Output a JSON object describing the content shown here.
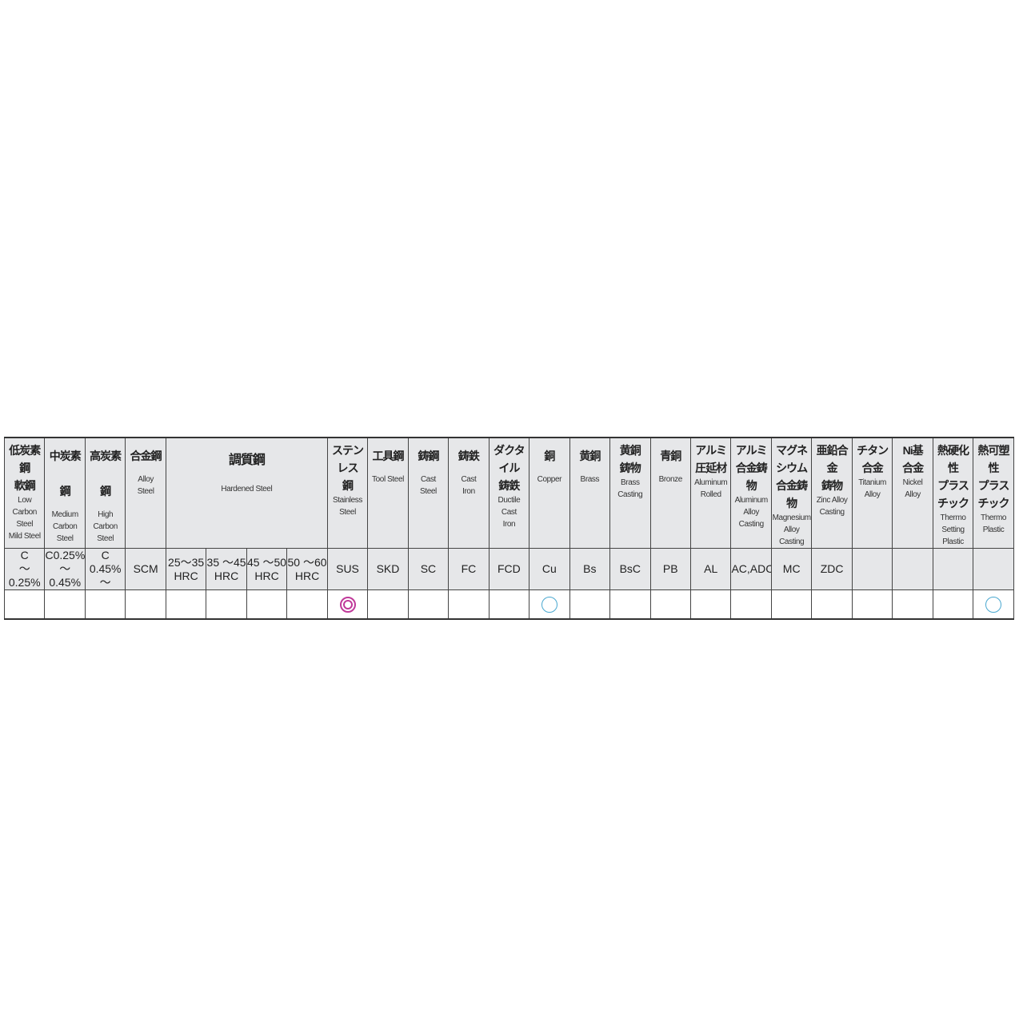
{
  "headers": [
    {
      "jp": "低炭素鋼\n軟鋼",
      "en": "Low Carbon\nSteel\nMild Steel"
    },
    {
      "jp": "中炭素鋼",
      "en": "Medium\nCarbon\nSteel"
    },
    {
      "jp": "高炭素鋼",
      "en": "High\nCarbon\nSteel"
    },
    {
      "jp": "合金鋼",
      "en": "Alloy\nSteel"
    },
    {
      "jp": "調質鋼",
      "en": "Hardened Steel",
      "span": 4
    },
    {
      "jp": "ステンレス\n鋼",
      "en": "Stainless\nSteel"
    },
    {
      "jp": "工具鋼",
      "en": "Tool Steel"
    },
    {
      "jp": "鋳鋼",
      "en": "Cast\nSteel"
    },
    {
      "jp": "鋳鉄",
      "en": "Cast\nIron"
    },
    {
      "jp": "ダクタイル\n鋳鉄",
      "en": "Ductile\nCast\nIron"
    },
    {
      "jp": "銅",
      "en": "Copper"
    },
    {
      "jp": "黄銅",
      "en": "Brass"
    },
    {
      "jp": "黄銅\n鋳物",
      "en": "Brass\nCasting"
    },
    {
      "jp": "青銅",
      "en": "Bronze"
    },
    {
      "jp": "アルミ\n圧延材",
      "en": "Aluminum\nRolled"
    },
    {
      "jp": "アルミ\n合金鋳物",
      "en": "Aluminum\nAlloy\nCasting"
    },
    {
      "jp": "マグネシウム\n合金鋳物",
      "en": "Magnesium\nAlloy\nCasting"
    },
    {
      "jp": "亜鉛合金\n鋳物",
      "en": "Zinc Alloy\nCasting"
    },
    {
      "jp": "チタン\n合金",
      "en": "Titanium\nAlloy"
    },
    {
      "jp": "Ni基\n合金",
      "en": "Nickel\nAlloy"
    },
    {
      "jp": "熱硬化性\nプラスチック",
      "en": "Thermo\nSetting\nPlastic"
    },
    {
      "jp": "熱可塑性\nプラスチック",
      "en": "Thermo\nPlastic"
    }
  ],
  "codes": [
    "C\n～0.25%",
    "C0.25%\n～0.45%",
    "C\n0.45% ～",
    "SCM",
    "25～35\nHRC",
    "35 ～45\nHRC",
    "45 ～50\nHRC",
    "50 ～60\nHRC",
    "SUS",
    "SKD",
    "SC",
    "FC",
    "FCD",
    "Cu",
    "Bs",
    "BsC",
    "PB",
    "AL",
    "AC,ADC",
    "MC",
    "ZDC",
    "",
    "",
    "",
    ""
  ],
  "marks": [
    "",
    "",
    "",
    "",
    "",
    "",
    "",
    "",
    "double-circle",
    "",
    "",
    "",
    "",
    "circle",
    "",
    "",
    "",
    "",
    "",
    "",
    "",
    "",
    "",
    "",
    "circle"
  ],
  "colors": {
    "header_bg": "#e6e7e9",
    "double_circle": "#c0399a",
    "circle": "#4aa8d0",
    "border": "#333333"
  }
}
